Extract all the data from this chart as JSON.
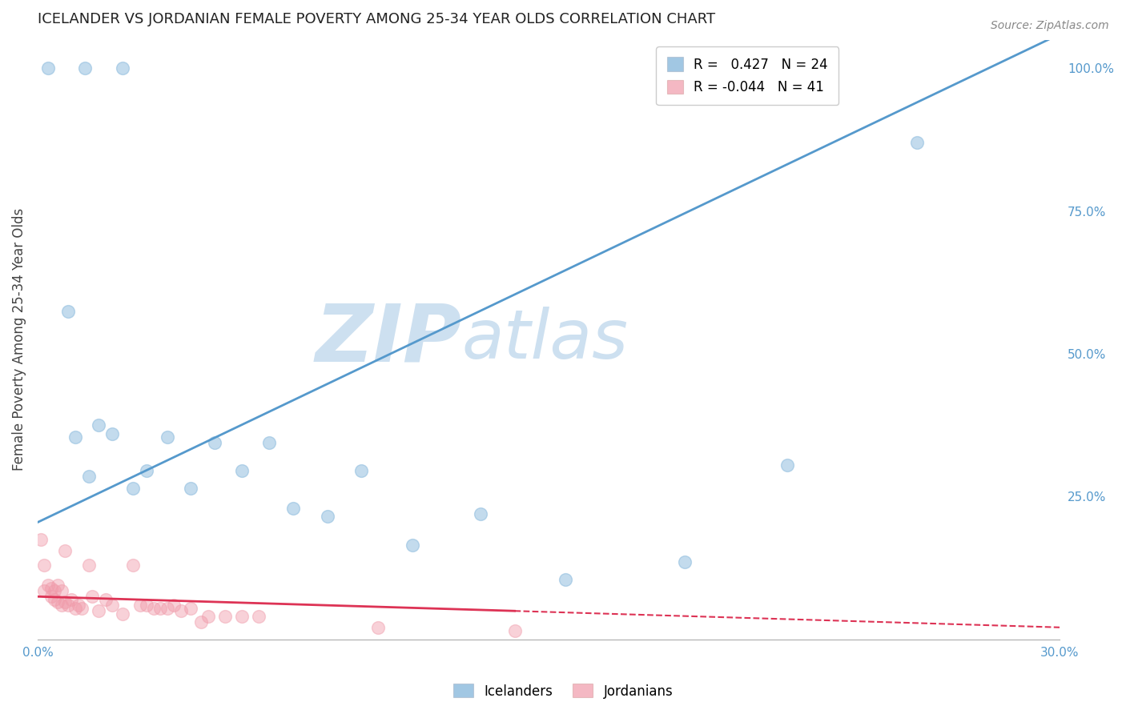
{
  "title": "ICELANDER VS JORDANIAN FEMALE POVERTY AMONG 25-34 YEAR OLDS CORRELATION CHART",
  "source": "Source: ZipAtlas.com",
  "ylabel": "Female Poverty Among 25-34 Year Olds",
  "xlim": [
    0.0,
    0.3
  ],
  "ylim": [
    0.0,
    1.05
  ],
  "x_ticks": [
    0.0,
    0.05,
    0.1,
    0.15,
    0.2,
    0.25,
    0.3
  ],
  "x_tick_labels": [
    "0.0%",
    "",
    "",
    "",
    "",
    "",
    "30.0%"
  ],
  "y_ticks_right": [
    0.0,
    0.25,
    0.5,
    0.75,
    1.0
  ],
  "y_tick_labels_right": [
    "",
    "25.0%",
    "50.0%",
    "75.0%",
    "100.0%"
  ],
  "grid_color": "#cccccc",
  "background_color": "#ffffff",
  "icelanders_color": "#7ab0d8",
  "jordanians_color": "#f09baa",
  "icelanders_R": 0.427,
  "icelanders_N": 24,
  "jordanians_R": -0.044,
  "jordanians_N": 41,
  "icelanders_x": [
    0.003,
    0.014,
    0.025,
    0.009,
    0.011,
    0.015,
    0.018,
    0.022,
    0.028,
    0.032,
    0.038,
    0.045,
    0.052,
    0.06,
    0.068,
    0.075,
    0.085,
    0.095,
    0.11,
    0.13,
    0.155,
    0.19,
    0.22,
    0.258
  ],
  "icelanders_y": [
    1.0,
    1.0,
    1.0,
    0.575,
    0.355,
    0.285,
    0.375,
    0.36,
    0.265,
    0.295,
    0.355,
    0.265,
    0.345,
    0.295,
    0.345,
    0.23,
    0.215,
    0.295,
    0.165,
    0.22,
    0.105,
    0.135,
    0.305,
    0.87
  ],
  "jordanians_x": [
    0.001,
    0.002,
    0.002,
    0.003,
    0.004,
    0.004,
    0.005,
    0.005,
    0.006,
    0.006,
    0.007,
    0.007,
    0.008,
    0.008,
    0.009,
    0.01,
    0.011,
    0.012,
    0.013,
    0.015,
    0.016,
    0.018,
    0.02,
    0.022,
    0.025,
    0.028,
    0.03,
    0.032,
    0.034,
    0.036,
    0.038,
    0.04,
    0.042,
    0.045,
    0.048,
    0.05,
    0.055,
    0.06,
    0.065,
    0.1,
    0.14
  ],
  "jordanians_y": [
    0.175,
    0.13,
    0.085,
    0.095,
    0.09,
    0.075,
    0.085,
    0.07,
    0.095,
    0.065,
    0.085,
    0.06,
    0.155,
    0.065,
    0.06,
    0.07,
    0.055,
    0.06,
    0.055,
    0.13,
    0.075,
    0.05,
    0.07,
    0.06,
    0.045,
    0.13,
    0.06,
    0.06,
    0.055,
    0.055,
    0.055,
    0.06,
    0.05,
    0.055,
    0.03,
    0.04,
    0.04,
    0.04,
    0.04,
    0.02,
    0.015
  ],
  "watermark_zip": "ZIP",
  "watermark_atlas": "atlas",
  "watermark_color": "#cde0f0",
  "watermark_fontsize": 72,
  "blue_line_color": "#5599cc",
  "red_line_color": "#dd3355",
  "red_dashed_color": "#dd3355",
  "marker_size": 130,
  "marker_alpha": 0.45,
  "marker_linewidth": 1.0,
  "blue_line_intercept": 0.205,
  "blue_line_slope": 2.85,
  "red_line_intercept": 0.075,
  "red_line_slope": -0.18
}
